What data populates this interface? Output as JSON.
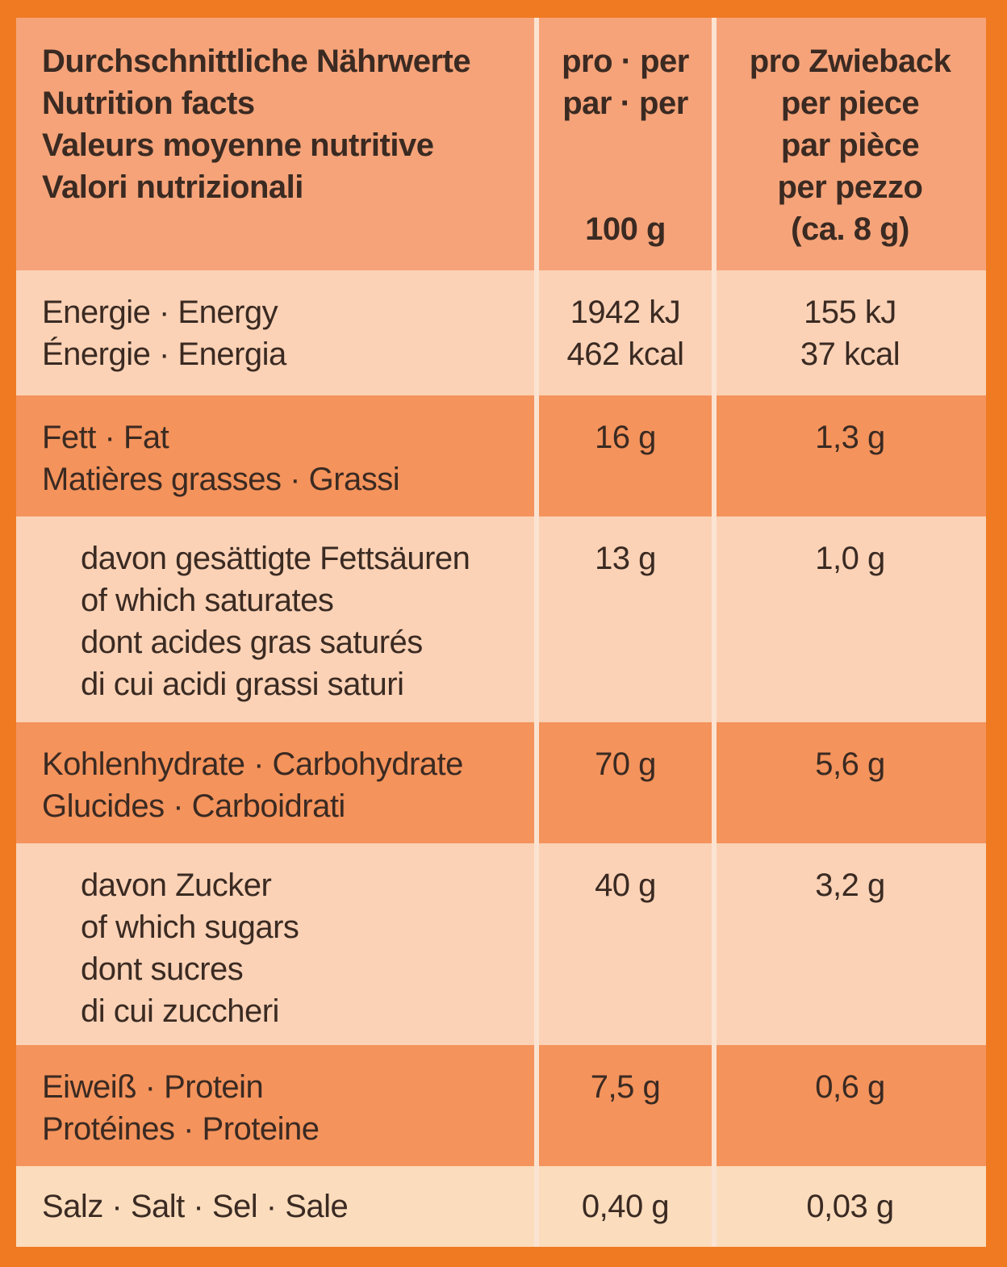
{
  "header": {
    "label_lines": [
      "Durchschnittliche Nährwerte",
      "Nutrition facts",
      "Valeurs moyenne nutritive",
      "Valori nutrizionali"
    ],
    "per100_lines": [
      "pro · per",
      "par · per",
      "100 g"
    ],
    "perpiece_lines": [
      "pro Zwieback",
      "per piece",
      "par pièce",
      "per pezzo",
      "(ca. 8 g)"
    ]
  },
  "rows": [
    {
      "label_lines": [
        "Energie · Energy",
        "Énergie · Energia"
      ],
      "per100_lines": [
        "1942 kJ",
        "462 kcal"
      ],
      "perpiece_lines": [
        "155 kJ",
        "37 kcal"
      ]
    },
    {
      "label_lines": [
        "Fett · Fat",
        "Matières grasses · Grassi"
      ],
      "per100_lines": [
        "16 g"
      ],
      "perpiece_lines": [
        "1,3 g"
      ]
    },
    {
      "label_lines": [
        "davon gesättigte Fettsäuren",
        "of which saturates",
        "dont acides gras saturés",
        "di cui acidi grassi saturi"
      ],
      "per100_lines": [
        "13 g"
      ],
      "perpiece_lines": [
        "1,0 g"
      ]
    },
    {
      "label_lines": [
        "Kohlenhydrate · Carbohydrate",
        "Glucides · Carboidrati"
      ],
      "per100_lines": [
        "70 g"
      ],
      "perpiece_lines": [
        "5,6 g"
      ]
    },
    {
      "label_lines": [
        "davon Zucker",
        "of which sugars",
        "dont sucres",
        "di cui zuccheri"
      ],
      "per100_lines": [
        "40 g"
      ],
      "perpiece_lines": [
        "3,2 g"
      ]
    },
    {
      "label_lines": [
        "Eiweiß · Protein",
        "Protéines · Proteine"
      ],
      "per100_lines": [
        "7,5 g"
      ],
      "perpiece_lines": [
        "0,6 g"
      ]
    },
    {
      "label_lines": [
        "Salz · Salt · Sel · Sale"
      ],
      "per100_lines": [
        "0,40 g"
      ],
      "perpiece_lines": [
        "0,03 g"
      ]
    }
  ]
}
